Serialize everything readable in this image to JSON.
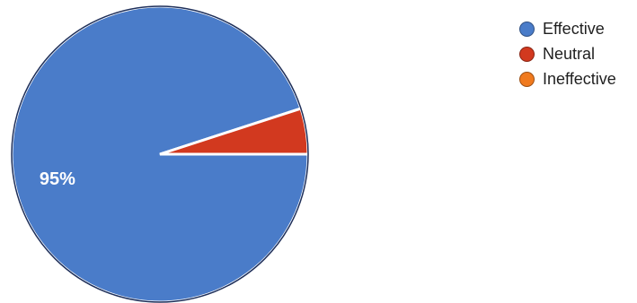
{
  "chart_data": {
    "type": "pie",
    "series": [
      {
        "name": "Effective",
        "value": 95,
        "color": "#4a7cc9"
      },
      {
        "name": "Neutral",
        "value": 5,
        "color": "#d2391f"
      },
      {
        "name": "Ineffective",
        "value": 0,
        "color": "#f07a1e"
      }
    ],
    "data_labels": [
      "95%",
      "",
      ""
    ],
    "legend_position": "top-right"
  }
}
